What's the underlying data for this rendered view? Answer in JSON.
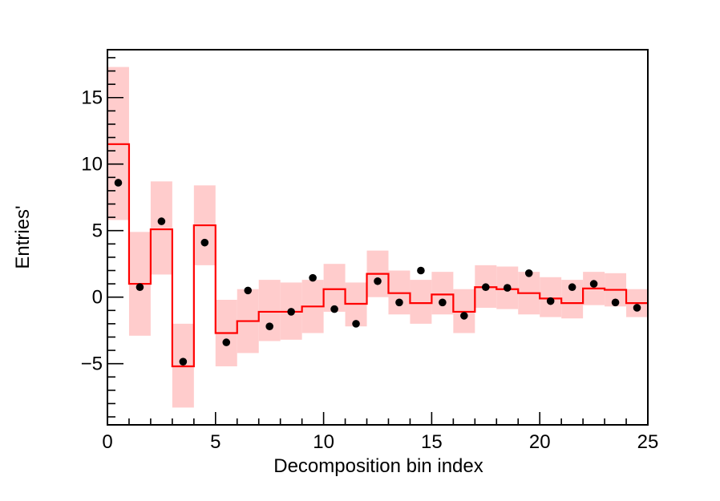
{
  "chart_data": {
    "type": "histogram-with-points",
    "title": "",
    "xlabel": "Decomposition bin index",
    "ylabel": "Entries'",
    "xlim": [
      0,
      25
    ],
    "ylim": [
      -9.6,
      18.6
    ],
    "x_major_ticks": [
      0,
      5,
      10,
      15,
      20,
      25
    ],
    "x_tick_labels": [
      "0",
      "5",
      "10",
      "15",
      "20",
      "25"
    ],
    "y_major_ticks": [
      -5,
      0,
      5,
      10,
      15
    ],
    "y_tick_labels": [
      "−5",
      "0",
      "5",
      "10",
      "15"
    ],
    "grid": false,
    "legend": "none",
    "bin_edges": [
      0,
      1,
      2,
      3,
      4,
      5,
      6,
      7,
      8,
      9,
      10,
      11,
      12,
      13,
      14,
      15,
      16,
      17,
      18,
      19,
      20,
      21,
      22,
      23,
      24,
      25
    ],
    "series": [
      {
        "kind": "step-histogram",
        "color": "#ff0000",
        "values": [
          11.5,
          1.0,
          5.1,
          -5.2,
          5.4,
          -2.7,
          -1.8,
          -1.1,
          -1.1,
          -0.7,
          0.6,
          -0.5,
          1.75,
          0.3,
          -0.45,
          0.2,
          -1.1,
          0.75,
          0.6,
          0.3,
          -0.1,
          -0.45,
          0.65,
          0.55,
          -0.45
        ]
      },
      {
        "kind": "uncertainty-band",
        "color": "#ffcccc",
        "lower": [
          5.8,
          -2.9,
          1.7,
          -8.3,
          2.4,
          -5.2,
          -4.2,
          -3.3,
          -3.2,
          -2.7,
          -1.1,
          -2.2,
          0.0,
          -1.3,
          -2.0,
          -1.3,
          -2.7,
          -0.8,
          -0.9,
          -1.3,
          -1.5,
          -1.6,
          -0.6,
          -0.7,
          -1.5
        ],
        "upper": [
          17.3,
          4.9,
          8.7,
          -2.0,
          8.4,
          -0.2,
          0.6,
          1.3,
          1.1,
          1.3,
          2.5,
          1.1,
          3.5,
          2.0,
          1.3,
          1.9,
          0.6,
          2.4,
          2.3,
          1.9,
          1.5,
          1.3,
          1.9,
          1.8,
          0.6
        ]
      },
      {
        "kind": "points",
        "color": "#000000",
        "x": [
          0.5,
          1.5,
          2.5,
          3.5,
          4.5,
          5.5,
          6.5,
          7.5,
          8.5,
          9.5,
          10.5,
          11.5,
          12.5,
          13.5,
          14.5,
          15.5,
          16.5,
          17.5,
          18.5,
          19.5,
          20.5,
          21.5,
          22.5,
          23.5,
          24.5
        ],
        "y": [
          8.6,
          0.75,
          5.7,
          -4.85,
          4.1,
          -3.4,
          0.5,
          -2.2,
          -1.1,
          1.45,
          -0.9,
          -2.0,
          1.2,
          -0.4,
          2.0,
          -0.4,
          -1.4,
          0.75,
          0.7,
          1.8,
          -0.3,
          0.75,
          1.0,
          -0.4,
          -0.8
        ]
      }
    ]
  }
}
